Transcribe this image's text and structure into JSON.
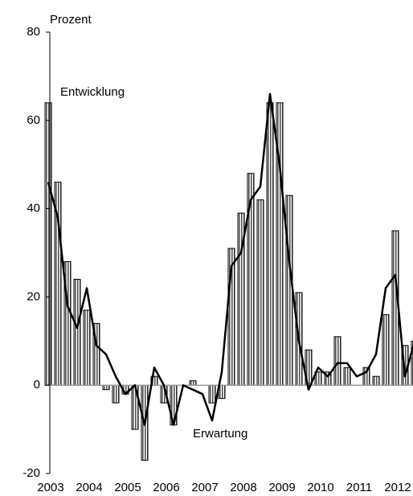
{
  "chart_data": {
    "type": "bar",
    "y_label": "Prozent",
    "categories": [
      "2003",
      null,
      null,
      null,
      "2004",
      null,
      null,
      null,
      "2005",
      null,
      null,
      null,
      "2006",
      null,
      null,
      null,
      "2007",
      null,
      null,
      null,
      "2008",
      null,
      null,
      null,
      "2009",
      null,
      null,
      null,
      "2010",
      null,
      null,
      null,
      "2011",
      null,
      null,
      null,
      "2012",
      null,
      null
    ],
    "series": [
      {
        "name": "Entwicklung",
        "type": "bar",
        "color": "#808080",
        "values": [
          64,
          46,
          28,
          24,
          17,
          14,
          -1,
          -4,
          -2,
          -10,
          -17,
          2,
          -4,
          -9,
          0,
          1,
          0,
          -4,
          -3,
          31,
          39,
          48,
          42,
          64,
          64,
          43,
          21,
          8,
          3,
          3,
          11,
          4,
          0,
          4,
          2,
          16,
          35,
          9,
          10
        ]
      },
      {
        "name": "Erwartung",
        "type": "line",
        "color": "#000000",
        "values": [
          46,
          38,
          18,
          13,
          22,
          9,
          7,
          2,
          -2,
          0,
          -9,
          4,
          0,
          -9,
          0,
          -1,
          -2,
          -8,
          3,
          27,
          30,
          42,
          45,
          66,
          50,
          28,
          10,
          -1,
          4,
          2,
          5,
          5,
          2,
          3,
          7,
          22,
          25,
          2,
          10
        ]
      }
    ],
    "ylim": [
      -20,
      80
    ],
    "yticks": [
      -20,
      0,
      20,
      40,
      60,
      80
    ],
    "grid": false
  }
}
